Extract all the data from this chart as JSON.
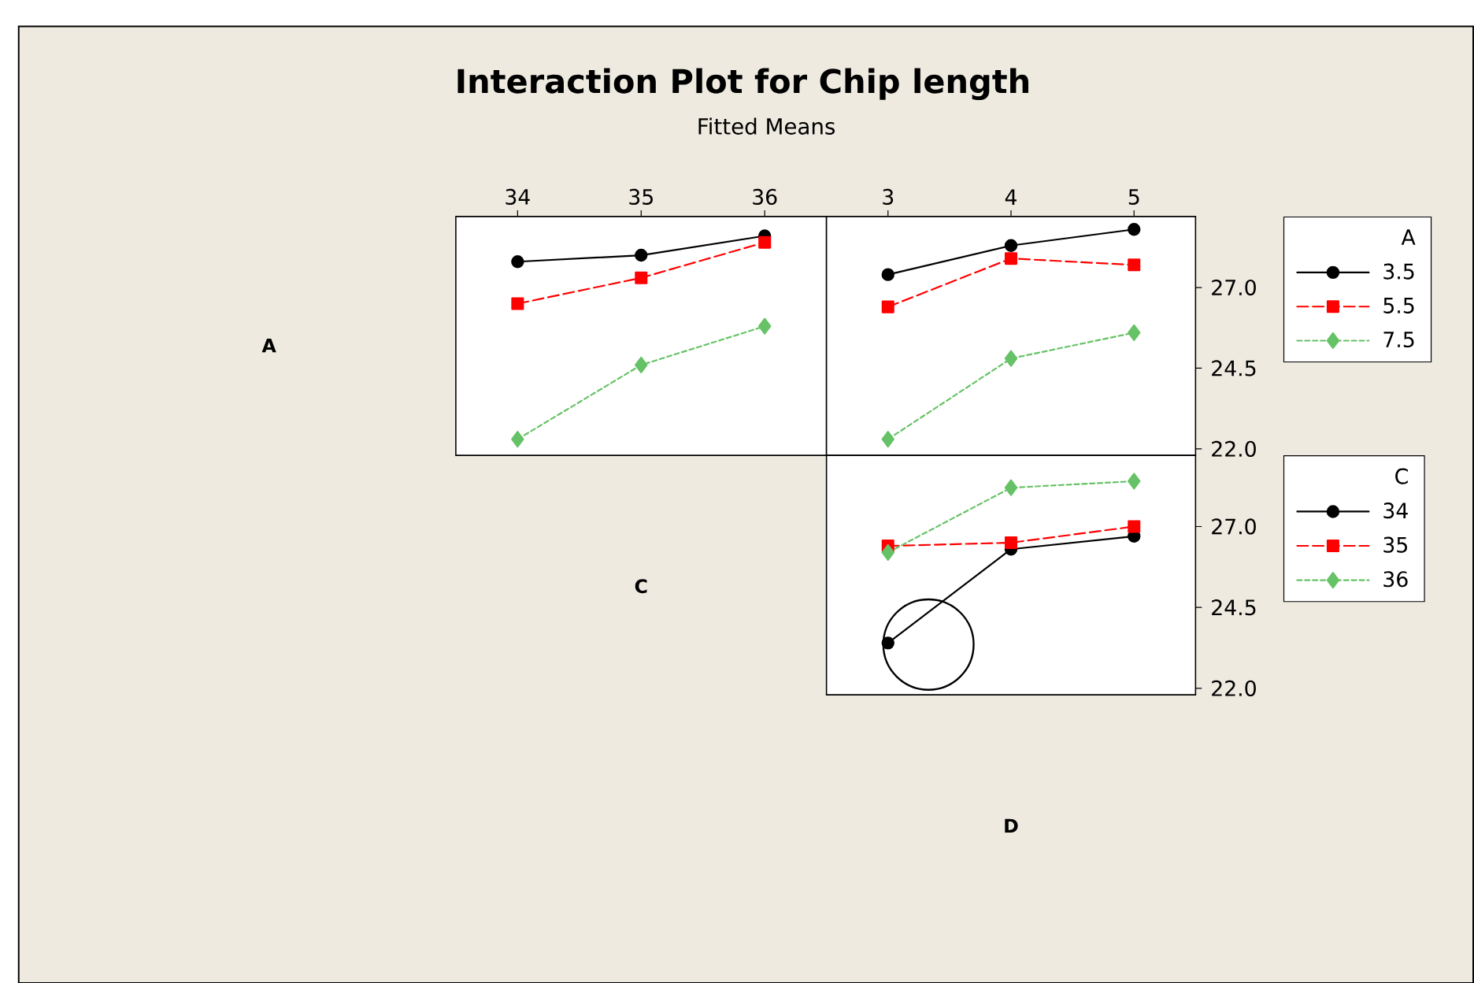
{
  "chart_data": [
    {
      "type": "line",
      "title": "Interaction Plot for Chip length",
      "subtitle": "Fitted Means",
      "xlabel": "C",
      "ylabel": "A",
      "x": [
        34,
        35,
        36
      ],
      "xlim": [
        33.5,
        36.5
      ],
      "xticks": [
        34,
        35,
        36
      ],
      "ylim": [
        21.8,
        29.2
      ],
      "tick_labels": "x",
      "series": [
        {
          "color": "#000000",
          "marker": "circle",
          "line_style": "solid",
          "values": [
            27.8,
            28.0,
            28.6
          ]
        },
        {
          "color": "#ff0000",
          "marker": "square",
          "line_style": "dashed",
          "values": [
            26.5,
            27.3,
            28.4
          ]
        },
        {
          "color": "#66c266",
          "marker": "diamond",
          "line_style": "dotted",
          "values": [
            22.3,
            24.6,
            25.8
          ]
        }
      ]
    },
    {
      "type": "line",
      "legend_title": "A",
      "legend": "right",
      "x": [
        3,
        4,
        5
      ],
      "xlim": [
        2.5,
        5.5
      ],
      "xticks": [
        3,
        4,
        5
      ],
      "ylim": [
        21.8,
        29.2
      ],
      "yticks": [
        {
          "value": 22,
          "label": "22.0"
        },
        {
          "value": 24.5,
          "label": "24.5"
        },
        {
          "value": 27,
          "label": "27.0"
        }
      ],
      "series": [
        {
          "name": "3.5",
          "color": "#000000",
          "marker": "circle",
          "line_style": "solid",
          "values": [
            27.4,
            28.3,
            28.8
          ]
        },
        {
          "name": "5.5",
          "color": "#ff0000",
          "marker": "square",
          "line_style": "dashed",
          "values": [
            26.4,
            27.9,
            27.7
          ]
        },
        {
          "name": "7.5",
          "color": "#66c266",
          "marker": "diamond",
          "line_style": "dotted",
          "values": [
            22.3,
            24.8,
            25.6
          ]
        }
      ]
    },
    {
      "type": "line",
      "xlabel": "D",
      "legend_title": "C",
      "legend": "right",
      "x": [
        3,
        4,
        5
      ],
      "xlim": [
        2.5,
        5.5
      ],
      "ylim": [
        21.8,
        29.2
      ],
      "yticks": [
        {
          "value": 22,
          "label": "22.0"
        },
        {
          "value": 24.5,
          "label": "24.5"
        },
        {
          "value": 27,
          "label": "27.0"
        }
      ],
      "tick_labels": "y",
      "series": [
        {
          "name": "34",
          "color": "#000000",
          "marker": "circle",
          "line_style": "solid",
          "values": [
            23.4,
            26.3,
            26.7
          ]
        },
        {
          "name": "35",
          "color": "#ff0000",
          "marker": "square",
          "line_style": "dashed",
          "values": [
            26.4,
            26.5,
            27.0
          ]
        },
        {
          "name": "36",
          "color": "#66c266",
          "marker": "diamond",
          "line_style": "dotted",
          "values": [
            26.2,
            28.2,
            28.4
          ]
        }
      ]
    }
  ]
}
